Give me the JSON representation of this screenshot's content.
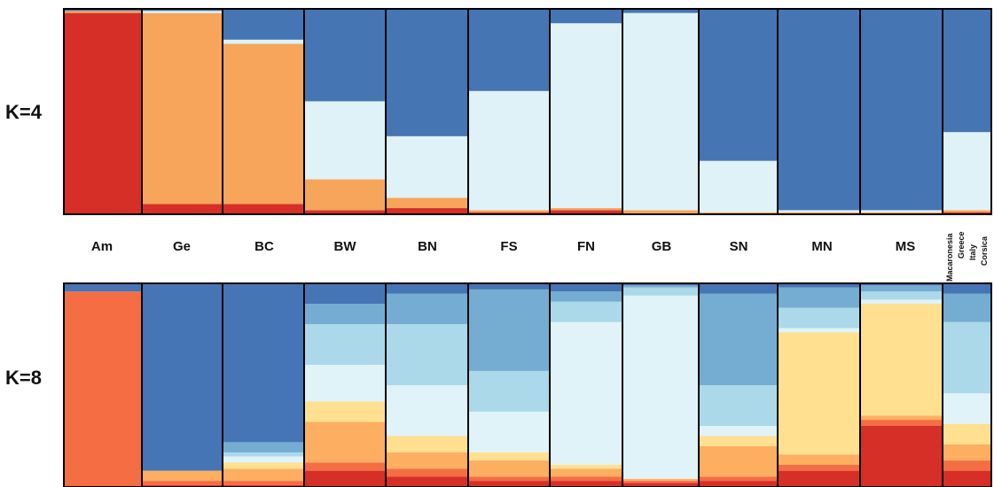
{
  "chart_data": {
    "type": "bar",
    "populations": [
      "Am",
      "Ge",
      "BC",
      "BW",
      "BN",
      "FS",
      "FN",
      "GB",
      "SN",
      "MN",
      "MS"
    ],
    "last_group_sublabels": [
      "Macaronesia",
      "Greece",
      "Italy",
      "Corsica"
    ],
    "panels": [
      {
        "label": "K=4",
        "cluster_colors": [
          "#d62f27",
          "#f6a55a",
          "#dff2f7",
          "#4675b3"
        ],
        "groups": [
          {
            "name": "Am",
            "proportions": [
              0.98,
              0.01,
              0.0,
              0.01
            ]
          },
          {
            "name": "Ge",
            "proportions": [
              0.05,
              0.93,
              0.01,
              0.01
            ]
          },
          {
            "name": "BC",
            "proportions": [
              0.05,
              0.78,
              0.02,
              0.15
            ]
          },
          {
            "name": "BW",
            "proportions": [
              0.02,
              0.15,
              0.38,
              0.45
            ]
          },
          {
            "name": "BN",
            "proportions": [
              0.03,
              0.05,
              0.3,
              0.62
            ]
          },
          {
            "name": "FS",
            "proportions": [
              0.01,
              0.01,
              0.58,
              0.4
            ]
          },
          {
            "name": "FN",
            "proportions": [
              0.02,
              0.01,
              0.9,
              0.07
            ]
          },
          {
            "name": "GB",
            "proportions": [
              0.0,
              0.02,
              0.96,
              0.02
            ]
          },
          {
            "name": "SN",
            "proportions": [
              0.0,
              0.01,
              0.25,
              0.74
            ]
          },
          {
            "name": "MN",
            "proportions": [
              0.0,
              0.01,
              0.01,
              0.98
            ]
          },
          {
            "name": "MS",
            "proportions": [
              0.0,
              0.01,
              0.01,
              0.98
            ]
          },
          {
            "name": "Macaronesia/Greece/Italy/Corsica",
            "proportions": [
              0.01,
              0.01,
              0.38,
              0.6
            ]
          }
        ]
      },
      {
        "label": "K=8",
        "cluster_colors": [
          "#d62f27",
          "#f46d43",
          "#fdae61",
          "#fee090",
          "#e0f3f8",
          "#abd9e9",
          "#74add1",
          "#4575b4"
        ],
        "groups": [
          {
            "name": "Am",
            "proportions": [
              0.0,
              0.96,
              0.0,
              0.0,
              0.0,
              0.0,
              0.0,
              0.04
            ]
          },
          {
            "name": "Ge",
            "proportions": [
              0.01,
              0.02,
              0.05,
              0.0,
              0.0,
              0.0,
              0.0,
              0.92
            ]
          },
          {
            "name": "BC",
            "proportions": [
              0.01,
              0.02,
              0.06,
              0.03,
              0.03,
              0.02,
              0.05,
              0.78
            ]
          },
          {
            "name": "BW",
            "proportions": [
              0.08,
              0.04,
              0.2,
              0.1,
              0.18,
              0.2,
              0.1,
              0.1
            ]
          },
          {
            "name": "BN",
            "proportions": [
              0.05,
              0.04,
              0.08,
              0.08,
              0.25,
              0.3,
              0.15,
              0.05
            ]
          },
          {
            "name": "FS",
            "proportions": [
              0.03,
              0.02,
              0.08,
              0.04,
              0.2,
              0.2,
              0.4,
              0.03
            ]
          },
          {
            "name": "FN",
            "proportions": [
              0.03,
              0.02,
              0.04,
              0.02,
              0.7,
              0.1,
              0.05,
              0.04
            ]
          },
          {
            "name": "GB",
            "proportions": [
              0.02,
              0.01,
              0.01,
              0.0,
              0.9,
              0.04,
              0.01,
              0.01
            ]
          },
          {
            "name": "SN",
            "proportions": [
              0.03,
              0.02,
              0.15,
              0.05,
              0.05,
              0.2,
              0.45,
              0.05
            ]
          },
          {
            "name": "MN",
            "proportions": [
              0.08,
              0.03,
              0.05,
              0.6,
              0.02,
              0.1,
              0.1,
              0.02
            ]
          },
          {
            "name": "MS",
            "proportions": [
              0.3,
              0.03,
              0.02,
              0.55,
              0.02,
              0.04,
              0.03,
              0.01
            ]
          },
          {
            "name": "Macaronesia/Greece/Italy/Corsica",
            "proportions": [
              0.08,
              0.05,
              0.08,
              0.1,
              0.15,
              0.35,
              0.14,
              0.05
            ]
          }
        ]
      }
    ]
  }
}
